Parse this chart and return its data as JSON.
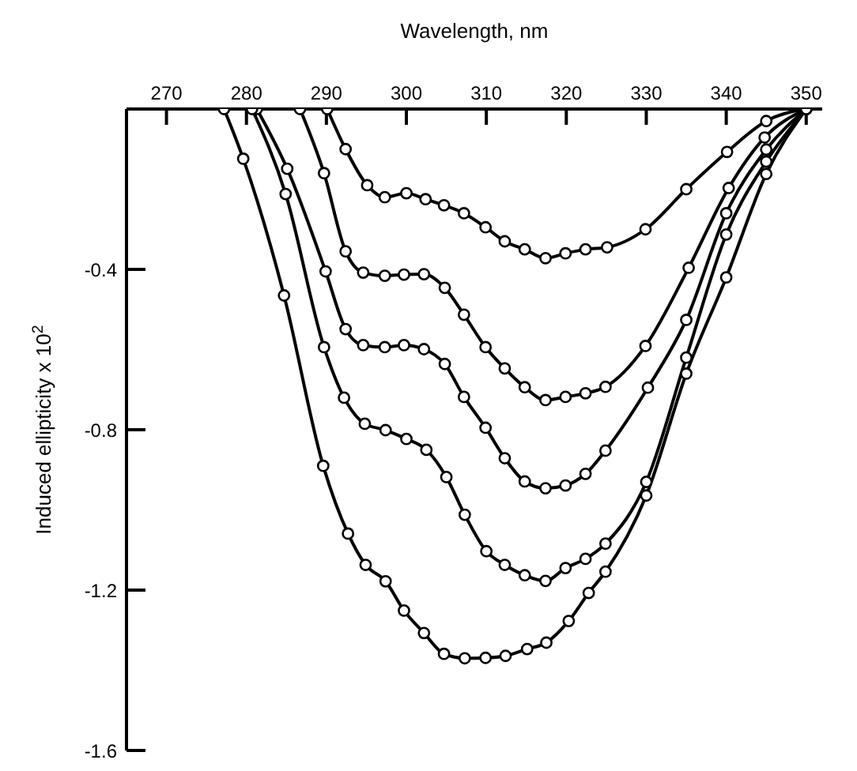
{
  "chart_data": {
    "type": "line",
    "xlabel": "Wavelength,  nm",
    "ylabel": "Induced ellipticity x 10$^{2}$",
    "xlim": [
      265,
      352
    ],
    "xticks": [
      270,
      280,
      290,
      300,
      310,
      320,
      330,
      340,
      350
    ],
    "ylim": [
      -1.6,
      0
    ],
    "yticks": [
      -0.4,
      -0.8,
      -1.2,
      -1.6
    ],
    "marker": "circle",
    "line_style": "solid",
    "series": [
      {
        "color": "#000000",
        "x": [
          290.1,
          292.4,
          295.1,
          297.3,
          300,
          302.4,
          304.7,
          307.2,
          309.9,
          312.3,
          314.8,
          317.4,
          319.9,
          322.4,
          325.1,
          329.9,
          335,
          340.1,
          345,
          350
        ],
        "values": [
          0,
          -0.1,
          -0.19,
          -0.22,
          -0.21,
          -0.225,
          -0.24,
          -0.26,
          -0.295,
          -0.33,
          -0.35,
          -0.372,
          -0.36,
          -0.35,
          -0.345,
          -0.3,
          -0.2,
          -0.107,
          -0.03,
          0
        ]
      },
      {
        "color": "#000000",
        "x": [
          286.7,
          289.7,
          292.4,
          294.6,
          297.3,
          299.7,
          302.2,
          304.8,
          307.2,
          309.9,
          312.3,
          314.8,
          317.4,
          319.9,
          322.4,
          324.9,
          329.9,
          335.3,
          340.3,
          344.8,
          350
        ],
        "values": [
          0,
          -0.16,
          -0.355,
          -0.408,
          -0.416,
          -0.413,
          -0.412,
          -0.446,
          -0.513,
          -0.594,
          -0.647,
          -0.694,
          -0.726,
          -0.718,
          -0.709,
          -0.693,
          -0.591,
          -0.396,
          -0.197,
          -0.071,
          0
        ]
      },
      {
        "color": "#000000",
        "x": [
          281.3,
          285.1,
          289.9,
          292.4,
          294.6,
          297.3,
          299.7,
          302.2,
          304.8,
          307.2,
          309.9,
          312.3,
          314.8,
          317.4,
          319.9,
          322.4,
          324.9,
          330.2,
          335,
          340,
          345,
          350
        ],
        "values": [
          0,
          -0.149,
          -0.405,
          -0.549,
          -0.589,
          -0.594,
          -0.589,
          -0.599,
          -0.636,
          -0.718,
          -0.795,
          -0.871,
          -0.929,
          -0.946,
          -0.939,
          -0.91,
          -0.852,
          -0.695,
          -0.526,
          -0.26,
          -0.101,
          0
        ]
      },
      {
        "color": "#000000",
        "x": [
          280.7,
          284.9,
          289.7,
          292.2,
          294.8,
          297.4,
          300,
          302.5,
          305,
          307.3,
          310,
          312.3,
          314.8,
          317.4,
          319.9,
          322.4,
          324.9,
          330,
          335,
          340,
          345,
          350
        ],
        "values": [
          0,
          -0.212,
          -0.594,
          -0.72,
          -0.785,
          -0.801,
          -0.823,
          -0.85,
          -0.918,
          -1.012,
          -1.103,
          -1.137,
          -1.163,
          -1.177,
          -1.145,
          -1.122,
          -1.084,
          -0.93,
          -0.62,
          -0.313,
          -0.131,
          0
        ]
      },
      {
        "color": "#000000",
        "x": [
          277.2,
          279.6,
          284.7,
          289.6,
          292.7,
          294.9,
          297.4,
          299.7,
          302.2,
          304.7,
          307.3,
          309.9,
          312.4,
          315.1,
          317.5,
          320.3,
          322.8,
          324.9,
          330,
          335,
          340,
          345,
          350
        ],
        "values": [
          0,
          -0.124,
          -0.465,
          -0.89,
          -1.059,
          -1.137,
          -1.178,
          -1.251,
          -1.307,
          -1.359,
          -1.37,
          -1.369,
          -1.364,
          -1.347,
          -1.331,
          -1.277,
          -1.207,
          -1.154,
          -0.964,
          -0.66,
          -0.42,
          -0.162,
          0
        ]
      }
    ]
  }
}
